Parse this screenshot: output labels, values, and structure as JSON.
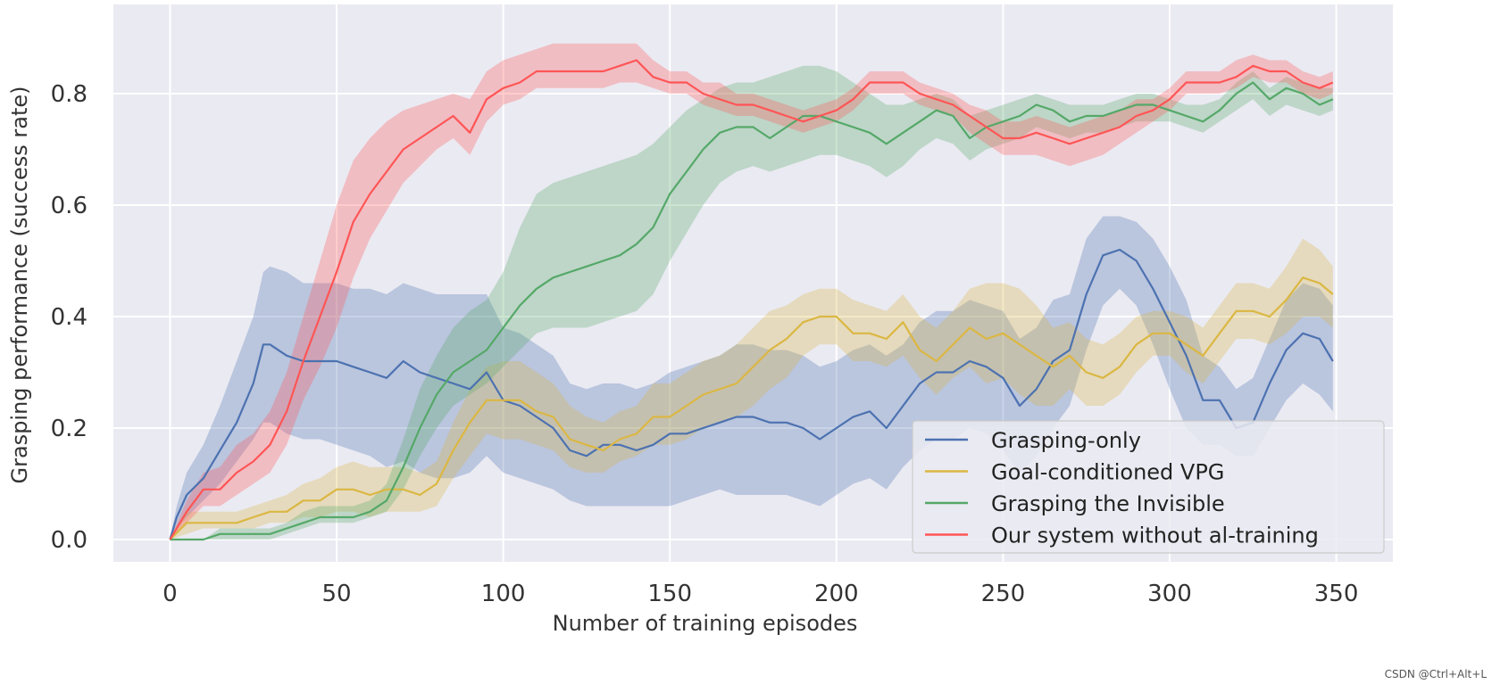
{
  "chart_data": {
    "type": "line",
    "title": "",
    "xlabel": "Number of training episodes",
    "ylabel": "Grasping performance (success rate)",
    "xlim": [
      -17,
      367
    ],
    "ylim": [
      -0.04,
      0.96
    ],
    "xticks": [
      0,
      50,
      100,
      150,
      200,
      250,
      300,
      350
    ],
    "xtick_labels": [
      "0",
      "50",
      "100",
      "150",
      "200",
      "250",
      "300",
      "350"
    ],
    "yticks": [
      0.0,
      0.2,
      0.4,
      0.6,
      0.8
    ],
    "ytick_labels": [
      "0.0",
      "0.2",
      "0.4",
      "0.6",
      "0.8"
    ],
    "grid": true,
    "background": "#eaeaf2",
    "legend_position": "lower-right",
    "series": [
      {
        "name": "Grasping-only",
        "color": "#4c72b0",
        "x": [
          0,
          2,
          5,
          10,
          15,
          20,
          25,
          28,
          30,
          35,
          40,
          45,
          50,
          55,
          60,
          65,
          70,
          75,
          80,
          85,
          90,
          95,
          100,
          105,
          110,
          115,
          120,
          125,
          130,
          135,
          140,
          145,
          150,
          155,
          160,
          165,
          170,
          175,
          180,
          185,
          190,
          195,
          200,
          205,
          210,
          215,
          220,
          225,
          230,
          235,
          240,
          245,
          250,
          255,
          260,
          265,
          270,
          275,
          280,
          285,
          290,
          295,
          300,
          305,
          310,
          315,
          320,
          325,
          330,
          335,
          340,
          345,
          349
        ],
        "y": [
          0.0,
          0.04,
          0.08,
          0.11,
          0.16,
          0.21,
          0.28,
          0.35,
          0.35,
          0.33,
          0.32,
          0.32,
          0.32,
          0.31,
          0.3,
          0.29,
          0.32,
          0.3,
          0.29,
          0.28,
          0.27,
          0.3,
          0.25,
          0.24,
          0.22,
          0.2,
          0.16,
          0.15,
          0.17,
          0.17,
          0.16,
          0.17,
          0.19,
          0.19,
          0.2,
          0.21,
          0.22,
          0.22,
          0.21,
          0.21,
          0.2,
          0.18,
          0.2,
          0.22,
          0.23,
          0.2,
          0.24,
          0.28,
          0.3,
          0.3,
          0.32,
          0.31,
          0.29,
          0.24,
          0.27,
          0.32,
          0.34,
          0.44,
          0.51,
          0.52,
          0.5,
          0.45,
          0.39,
          0.33,
          0.25,
          0.25,
          0.2,
          0.21,
          0.28,
          0.34,
          0.37,
          0.36,
          0.32
        ],
        "lower": [
          0.0,
          0.02,
          0.04,
          0.07,
          0.1,
          0.14,
          0.18,
          0.21,
          0.21,
          0.19,
          0.18,
          0.18,
          0.17,
          0.16,
          0.15,
          0.13,
          0.14,
          0.12,
          0.11,
          0.11,
          0.12,
          0.15,
          0.12,
          0.11,
          0.1,
          0.09,
          0.07,
          0.06,
          0.06,
          0.06,
          0.06,
          0.06,
          0.06,
          0.07,
          0.08,
          0.09,
          0.08,
          0.08,
          0.08,
          0.08,
          0.07,
          0.06,
          0.08,
          0.1,
          0.11,
          0.09,
          0.13,
          0.16,
          0.18,
          0.18,
          0.2,
          0.19,
          0.16,
          0.12,
          0.15,
          0.2,
          0.24,
          0.34,
          0.42,
          0.45,
          0.42,
          0.35,
          0.27,
          0.2,
          0.17,
          0.17,
          0.15,
          0.15,
          0.2,
          0.25,
          0.28,
          0.26,
          0.23
        ],
        "upper": [
          0.0,
          0.06,
          0.12,
          0.17,
          0.24,
          0.32,
          0.4,
          0.48,
          0.49,
          0.48,
          0.46,
          0.46,
          0.46,
          0.45,
          0.45,
          0.44,
          0.46,
          0.45,
          0.44,
          0.44,
          0.44,
          0.44,
          0.38,
          0.37,
          0.35,
          0.33,
          0.28,
          0.27,
          0.28,
          0.28,
          0.27,
          0.28,
          0.3,
          0.31,
          0.32,
          0.33,
          0.35,
          0.35,
          0.34,
          0.34,
          0.33,
          0.31,
          0.32,
          0.34,
          0.35,
          0.33,
          0.35,
          0.39,
          0.41,
          0.41,
          0.43,
          0.42,
          0.41,
          0.36,
          0.38,
          0.43,
          0.44,
          0.54,
          0.58,
          0.58,
          0.57,
          0.54,
          0.49,
          0.43,
          0.33,
          0.31,
          0.27,
          0.29,
          0.36,
          0.43,
          0.46,
          0.45,
          0.42
        ]
      },
      {
        "name": "Goal-conditioned VPG",
        "color": "#dbb743",
        "x": [
          0,
          5,
          10,
          15,
          20,
          25,
          30,
          35,
          40,
          45,
          50,
          55,
          60,
          65,
          70,
          75,
          80,
          85,
          90,
          95,
          100,
          105,
          110,
          115,
          120,
          125,
          130,
          135,
          140,
          145,
          150,
          155,
          160,
          165,
          170,
          175,
          180,
          185,
          190,
          195,
          200,
          205,
          210,
          215,
          220,
          225,
          230,
          235,
          240,
          245,
          250,
          255,
          260,
          265,
          270,
          275,
          280,
          285,
          290,
          295,
          300,
          305,
          310,
          315,
          320,
          325,
          330,
          335,
          340,
          345,
          349
        ],
        "y": [
          0.0,
          0.03,
          0.03,
          0.03,
          0.03,
          0.04,
          0.05,
          0.05,
          0.07,
          0.07,
          0.09,
          0.09,
          0.08,
          0.09,
          0.09,
          0.08,
          0.1,
          0.16,
          0.21,
          0.25,
          0.25,
          0.25,
          0.23,
          0.22,
          0.18,
          0.17,
          0.16,
          0.18,
          0.19,
          0.22,
          0.22,
          0.24,
          0.26,
          0.27,
          0.28,
          0.31,
          0.34,
          0.36,
          0.39,
          0.4,
          0.4,
          0.37,
          0.37,
          0.36,
          0.39,
          0.34,
          0.32,
          0.35,
          0.38,
          0.36,
          0.37,
          0.35,
          0.33,
          0.31,
          0.33,
          0.3,
          0.29,
          0.31,
          0.35,
          0.37,
          0.37,
          0.35,
          0.33,
          0.37,
          0.41,
          0.41,
          0.4,
          0.43,
          0.47,
          0.46,
          0.44
        ],
        "lower": [
          0.0,
          0.01,
          0.02,
          0.02,
          0.02,
          0.02,
          0.03,
          0.03,
          0.04,
          0.04,
          0.05,
          0.05,
          0.04,
          0.05,
          0.05,
          0.05,
          0.06,
          0.11,
          0.15,
          0.19,
          0.18,
          0.18,
          0.17,
          0.16,
          0.13,
          0.12,
          0.12,
          0.14,
          0.15,
          0.17,
          0.17,
          0.18,
          0.2,
          0.21,
          0.22,
          0.24,
          0.27,
          0.29,
          0.33,
          0.35,
          0.35,
          0.32,
          0.32,
          0.31,
          0.33,
          0.29,
          0.26,
          0.29,
          0.31,
          0.28,
          0.29,
          0.26,
          0.24,
          0.24,
          0.27,
          0.24,
          0.24,
          0.26,
          0.3,
          0.33,
          0.33,
          0.3,
          0.28,
          0.32,
          0.36,
          0.36,
          0.35,
          0.37,
          0.4,
          0.4,
          0.38
        ],
        "upper": [
          0.0,
          0.05,
          0.05,
          0.05,
          0.05,
          0.06,
          0.07,
          0.08,
          0.1,
          0.11,
          0.13,
          0.14,
          0.13,
          0.13,
          0.13,
          0.12,
          0.14,
          0.21,
          0.27,
          0.31,
          0.32,
          0.32,
          0.3,
          0.28,
          0.24,
          0.22,
          0.21,
          0.23,
          0.24,
          0.28,
          0.28,
          0.3,
          0.32,
          0.33,
          0.35,
          0.38,
          0.41,
          0.42,
          0.44,
          0.45,
          0.45,
          0.43,
          0.42,
          0.41,
          0.44,
          0.4,
          0.38,
          0.41,
          0.45,
          0.46,
          0.46,
          0.45,
          0.42,
          0.38,
          0.39,
          0.36,
          0.35,
          0.37,
          0.4,
          0.41,
          0.41,
          0.4,
          0.38,
          0.42,
          0.46,
          0.46,
          0.45,
          0.49,
          0.54,
          0.52,
          0.49
        ]
      },
      {
        "name": "Grasping the Invisible",
        "color": "#55a868",
        "x": [
          0,
          5,
          10,
          15,
          20,
          25,
          30,
          35,
          40,
          45,
          50,
          55,
          60,
          65,
          70,
          75,
          80,
          85,
          90,
          95,
          100,
          105,
          110,
          115,
          120,
          125,
          130,
          135,
          140,
          145,
          150,
          155,
          160,
          165,
          170,
          175,
          180,
          185,
          190,
          195,
          200,
          205,
          210,
          215,
          220,
          225,
          230,
          235,
          240,
          245,
          250,
          255,
          260,
          265,
          270,
          275,
          280,
          285,
          290,
          295,
          300,
          305,
          310,
          315,
          320,
          325,
          330,
          335,
          340,
          345,
          349
        ],
        "y": [
          0.0,
          0.0,
          0.0,
          0.01,
          0.01,
          0.01,
          0.01,
          0.02,
          0.03,
          0.04,
          0.04,
          0.04,
          0.05,
          0.07,
          0.13,
          0.2,
          0.26,
          0.3,
          0.32,
          0.34,
          0.38,
          0.42,
          0.45,
          0.47,
          0.48,
          0.49,
          0.5,
          0.51,
          0.53,
          0.56,
          0.62,
          0.66,
          0.7,
          0.73,
          0.74,
          0.74,
          0.72,
          0.74,
          0.76,
          0.76,
          0.75,
          0.74,
          0.73,
          0.71,
          0.73,
          0.75,
          0.77,
          0.76,
          0.72,
          0.74,
          0.75,
          0.76,
          0.78,
          0.77,
          0.75,
          0.76,
          0.76,
          0.77,
          0.78,
          0.78,
          0.77,
          0.76,
          0.75,
          0.77,
          0.8,
          0.82,
          0.79,
          0.81,
          0.8,
          0.78,
          0.79
        ],
        "lower": [
          0.0,
          0.0,
          0.0,
          0.0,
          0.0,
          0.0,
          0.0,
          0.01,
          0.02,
          0.03,
          0.03,
          0.03,
          0.04,
          0.05,
          0.09,
          0.15,
          0.2,
          0.24,
          0.26,
          0.28,
          0.31,
          0.34,
          0.37,
          0.38,
          0.38,
          0.38,
          0.39,
          0.4,
          0.41,
          0.44,
          0.5,
          0.55,
          0.6,
          0.64,
          0.66,
          0.67,
          0.66,
          0.67,
          0.68,
          0.69,
          0.69,
          0.68,
          0.67,
          0.65,
          0.67,
          0.7,
          0.72,
          0.71,
          0.68,
          0.7,
          0.71,
          0.72,
          0.74,
          0.73,
          0.72,
          0.73,
          0.73,
          0.74,
          0.75,
          0.75,
          0.75,
          0.74,
          0.73,
          0.75,
          0.77,
          0.79,
          0.76,
          0.78,
          0.77,
          0.76,
          0.77
        ],
        "upper": [
          0.0,
          0.0,
          0.0,
          0.02,
          0.02,
          0.02,
          0.02,
          0.03,
          0.05,
          0.06,
          0.06,
          0.06,
          0.07,
          0.1,
          0.18,
          0.27,
          0.33,
          0.38,
          0.41,
          0.43,
          0.48,
          0.56,
          0.62,
          0.64,
          0.65,
          0.66,
          0.67,
          0.68,
          0.69,
          0.71,
          0.74,
          0.77,
          0.79,
          0.81,
          0.82,
          0.82,
          0.83,
          0.84,
          0.85,
          0.85,
          0.84,
          0.82,
          0.8,
          0.78,
          0.78,
          0.79,
          0.8,
          0.79,
          0.76,
          0.77,
          0.78,
          0.79,
          0.8,
          0.79,
          0.78,
          0.78,
          0.78,
          0.79,
          0.8,
          0.8,
          0.79,
          0.78,
          0.78,
          0.79,
          0.82,
          0.84,
          0.81,
          0.83,
          0.82,
          0.81,
          0.81
        ]
      },
      {
        "name": "Our system without al-training",
        "color": "#ff5555",
        "x": [
          0,
          5,
          10,
          15,
          20,
          25,
          30,
          35,
          40,
          45,
          50,
          55,
          60,
          65,
          70,
          75,
          80,
          85,
          90,
          95,
          100,
          105,
          110,
          115,
          120,
          125,
          130,
          135,
          140,
          145,
          150,
          155,
          160,
          165,
          170,
          175,
          180,
          185,
          190,
          195,
          200,
          205,
          210,
          215,
          220,
          225,
          230,
          235,
          240,
          245,
          250,
          255,
          260,
          265,
          270,
          275,
          280,
          285,
          290,
          295,
          300,
          305,
          310,
          315,
          320,
          325,
          330,
          335,
          340,
          345,
          349
        ],
        "y": [
          0.0,
          0.05,
          0.09,
          0.09,
          0.12,
          0.14,
          0.17,
          0.23,
          0.32,
          0.4,
          0.48,
          0.57,
          0.62,
          0.66,
          0.7,
          0.72,
          0.74,
          0.76,
          0.73,
          0.79,
          0.81,
          0.82,
          0.84,
          0.84,
          0.84,
          0.84,
          0.84,
          0.85,
          0.86,
          0.83,
          0.82,
          0.82,
          0.8,
          0.79,
          0.78,
          0.78,
          0.77,
          0.76,
          0.75,
          0.76,
          0.77,
          0.79,
          0.82,
          0.82,
          0.82,
          0.8,
          0.79,
          0.78,
          0.76,
          0.74,
          0.72,
          0.72,
          0.73,
          0.72,
          0.71,
          0.72,
          0.73,
          0.74,
          0.76,
          0.77,
          0.79,
          0.82,
          0.82,
          0.82,
          0.83,
          0.85,
          0.84,
          0.84,
          0.82,
          0.81,
          0.82
        ],
        "lower": [
          0.0,
          0.03,
          0.06,
          0.06,
          0.08,
          0.1,
          0.12,
          0.17,
          0.25,
          0.31,
          0.38,
          0.47,
          0.54,
          0.59,
          0.64,
          0.67,
          0.7,
          0.72,
          0.69,
          0.75,
          0.78,
          0.79,
          0.81,
          0.81,
          0.81,
          0.81,
          0.81,
          0.82,
          0.82,
          0.81,
          0.8,
          0.8,
          0.78,
          0.77,
          0.76,
          0.76,
          0.75,
          0.74,
          0.73,
          0.74,
          0.75,
          0.77,
          0.8,
          0.8,
          0.8,
          0.78,
          0.77,
          0.76,
          0.73,
          0.71,
          0.69,
          0.69,
          0.69,
          0.68,
          0.67,
          0.68,
          0.69,
          0.71,
          0.73,
          0.75,
          0.77,
          0.8,
          0.8,
          0.8,
          0.81,
          0.83,
          0.82,
          0.82,
          0.8,
          0.79,
          0.8
        ],
        "upper": [
          0.0,
          0.07,
          0.12,
          0.13,
          0.17,
          0.19,
          0.23,
          0.3,
          0.4,
          0.5,
          0.6,
          0.68,
          0.72,
          0.75,
          0.77,
          0.78,
          0.79,
          0.8,
          0.79,
          0.84,
          0.86,
          0.87,
          0.88,
          0.89,
          0.89,
          0.89,
          0.89,
          0.89,
          0.89,
          0.86,
          0.84,
          0.84,
          0.82,
          0.82,
          0.8,
          0.8,
          0.79,
          0.78,
          0.77,
          0.78,
          0.79,
          0.81,
          0.84,
          0.84,
          0.84,
          0.82,
          0.81,
          0.8,
          0.78,
          0.77,
          0.75,
          0.75,
          0.76,
          0.75,
          0.74,
          0.75,
          0.76,
          0.77,
          0.79,
          0.79,
          0.81,
          0.84,
          0.84,
          0.84,
          0.86,
          0.87,
          0.86,
          0.86,
          0.84,
          0.83,
          0.84
        ]
      }
    ]
  },
  "watermark": "CSDN @Ctrl+Alt+L"
}
